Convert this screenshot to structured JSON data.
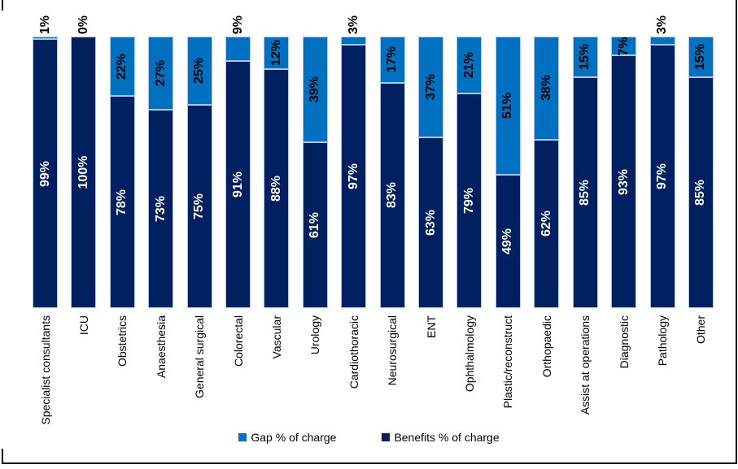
{
  "chart_data": {
    "type": "bar",
    "subtype": "100%-stacked-column",
    "title": "",
    "xlabel": "",
    "ylabel": "",
    "ylim": [
      0,
      100
    ],
    "grid": false,
    "axis_lines_visible": false,
    "legend_position": "bottom-center",
    "categories": [
      "Specialist consultants",
      "ICU",
      "Obstetrics",
      "Anaesthesia",
      "General surgical",
      "Colorectal",
      "Vascular",
      "Urology",
      "Cardiothoracic",
      "Neurosurgical",
      "ENT",
      "Ophthalmology",
      "Plastic/reconstruct",
      "Orthopaedic",
      "Assist at operations",
      "Diagnostic",
      "Pathology",
      "Other"
    ],
    "series": [
      {
        "name": "Gap % of charge",
        "color": "#0070C0",
        "label_color": "#000000",
        "values": [
          1,
          0,
          22,
          27,
          25,
          9,
          12,
          39,
          3,
          17,
          37,
          21,
          51,
          38,
          15,
          7,
          3,
          15
        ],
        "labels": [
          "1%",
          "0%",
          "22%",
          "27%",
          "25%",
          "9%",
          "12%",
          "39%",
          "3%",
          "17%",
          "37%",
          "21%",
          "51%",
          "38%",
          "15%",
          "7%",
          "3%",
          "15%"
        ]
      },
      {
        "name": "Benefits % of charge",
        "color": "#002060",
        "label_color": "#FFFFFF",
        "values": [
          99,
          100,
          78,
          73,
          75,
          91,
          88,
          61,
          97,
          83,
          63,
          79,
          49,
          62,
          85,
          93,
          97,
          85
        ],
        "labels": [
          "99%",
          "100%",
          "78%",
          "73%",
          "75%",
          "91%",
          "88%",
          "61%",
          "97%",
          "83%",
          "63%",
          "79%",
          "49%",
          "62%",
          "85%",
          "93%",
          "97%",
          "85%"
        ]
      }
    ],
    "gap_labels_above_bar": [
      "Specialist consultants",
      "ICU",
      "Colorectal",
      "Cardiothoracic",
      "Pathology"
    ],
    "bar_border_color": "#AFC8E8",
    "background_color": "#FFFFFF",
    "frame_border_color": "#000000"
  },
  "legend": {
    "items": [
      {
        "label": "Gap % of charge",
        "color": "#0070C0"
      },
      {
        "label": "Benefits % of charge",
        "color": "#002060"
      }
    ]
  }
}
